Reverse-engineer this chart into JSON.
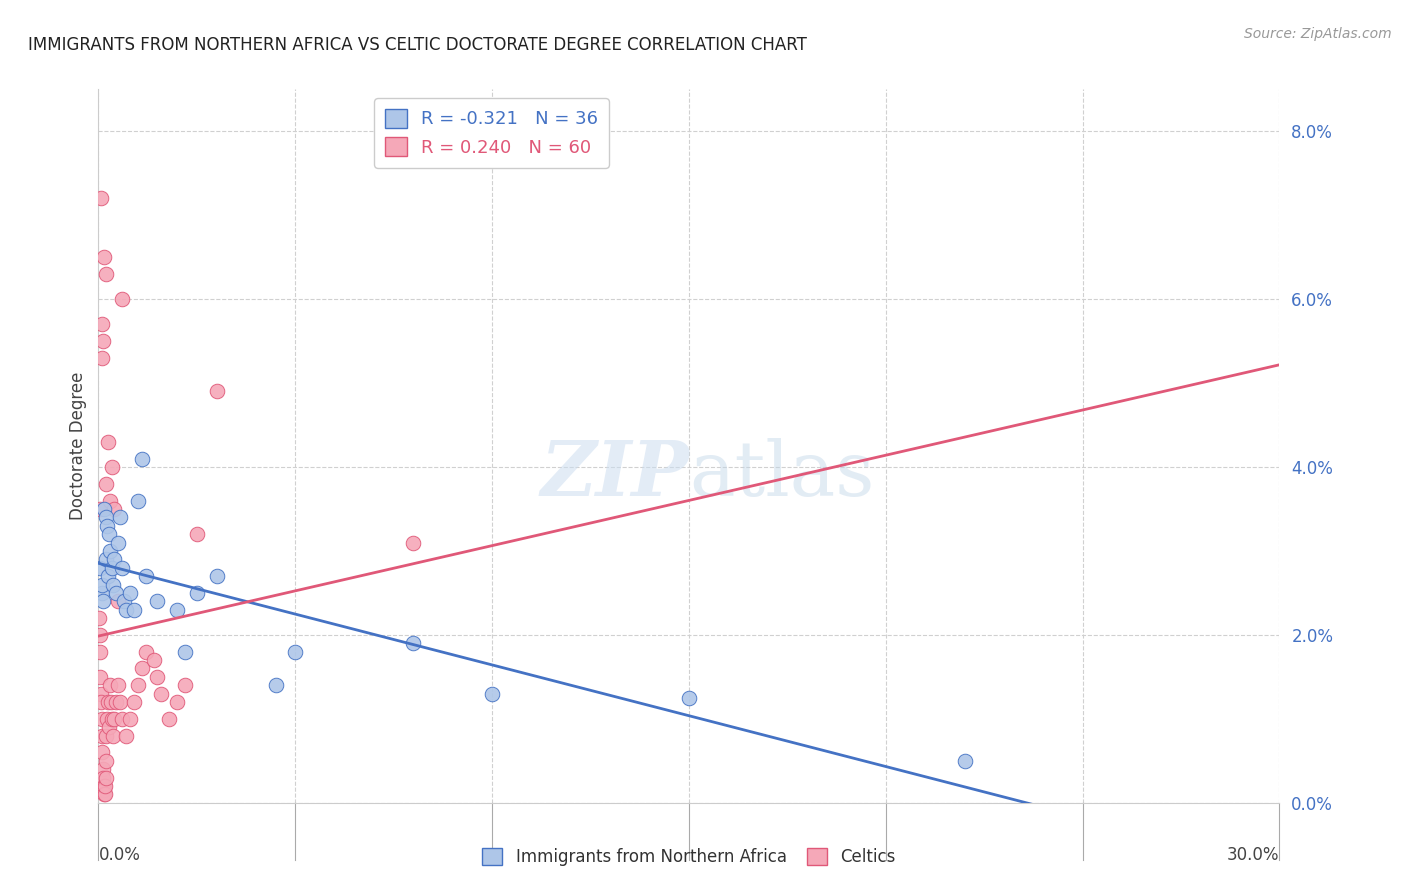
{
  "title": "IMMIGRANTS FROM NORTHERN AFRICA VS CELTIC DOCTORATE DEGREE CORRELATION CHART",
  "source": "Source: ZipAtlas.com",
  "ylabel": "Doctorate Degree",
  "right_ytick_vals": [
    0.0,
    2.0,
    4.0,
    6.0,
    8.0
  ],
  "xlim": [
    0.0,
    30.0
  ],
  "ylim": [
    0.0,
    8.5
  ],
  "legend_r_blue": "R = -0.321",
  "legend_n_blue": "N = 36",
  "legend_r_pink": "R = 0.240",
  "legend_n_pink": "N = 60",
  "color_blue": "#aec6e8",
  "color_pink": "#f5a8b8",
  "line_color_blue": "#4472c4",
  "line_color_pink": "#e05878",
  "watermark_zip": "ZIP",
  "watermark_atlas": "atlas",
  "blue_x": [
    0.05,
    0.08,
    0.1,
    0.12,
    0.15,
    0.18,
    0.2,
    0.22,
    0.25,
    0.28,
    0.3,
    0.35,
    0.38,
    0.4,
    0.45,
    0.5,
    0.55,
    0.6,
    0.65,
    0.7,
    0.8,
    0.9,
    1.0,
    1.1,
    1.2,
    1.5,
    2.0,
    2.2,
    2.5,
    3.0,
    4.5,
    5.0,
    8.0,
    10.0,
    15.0,
    22.0
  ],
  "blue_y": [
    2.8,
    2.5,
    2.6,
    2.4,
    3.5,
    3.4,
    2.9,
    3.3,
    2.7,
    3.2,
    3.0,
    2.8,
    2.6,
    2.9,
    2.5,
    3.1,
    3.4,
    2.8,
    2.4,
    2.3,
    2.5,
    2.3,
    3.6,
    4.1,
    2.7,
    2.4,
    2.3,
    1.8,
    2.5,
    2.7,
    1.4,
    1.8,
    1.9,
    1.3,
    1.25,
    0.5
  ],
  "pink_x": [
    0.02,
    0.03,
    0.04,
    0.05,
    0.06,
    0.07,
    0.08,
    0.09,
    0.1,
    0.11,
    0.12,
    0.13,
    0.14,
    0.15,
    0.16,
    0.17,
    0.18,
    0.19,
    0.2,
    0.22,
    0.25,
    0.28,
    0.3,
    0.32,
    0.35,
    0.38,
    0.4,
    0.45,
    0.5,
    0.55,
    0.6,
    0.7,
    0.8,
    0.9,
    1.0,
    1.1,
    1.2,
    1.4,
    1.5,
    1.6,
    1.8,
    2.0,
    2.2,
    2.5,
    3.0,
    0.05,
    0.08,
    0.1,
    0.12,
    0.15,
    0.18,
    0.2,
    0.25,
    0.3,
    0.35,
    0.4,
    0.5,
    0.6,
    8.0,
    0.07
  ],
  "pink_y": [
    2.2,
    2.0,
    1.8,
    1.5,
    1.3,
    1.2,
    1.0,
    0.8,
    0.6,
    0.4,
    0.3,
    0.2,
    0.15,
    0.1,
    0.1,
    0.2,
    0.3,
    0.5,
    0.8,
    1.0,
    1.2,
    0.9,
    1.4,
    1.2,
    1.0,
    0.8,
    1.0,
    1.2,
    1.4,
    1.2,
    1.0,
    0.8,
    1.0,
    1.2,
    1.4,
    1.6,
    1.8,
    1.7,
    1.5,
    1.3,
    1.0,
    1.2,
    1.4,
    3.2,
    4.9,
    3.5,
    5.3,
    5.7,
    5.5,
    6.5,
    6.3,
    3.8,
    4.3,
    3.6,
    4.0,
    3.5,
    2.4,
    6.0,
    3.1,
    7.2
  ]
}
